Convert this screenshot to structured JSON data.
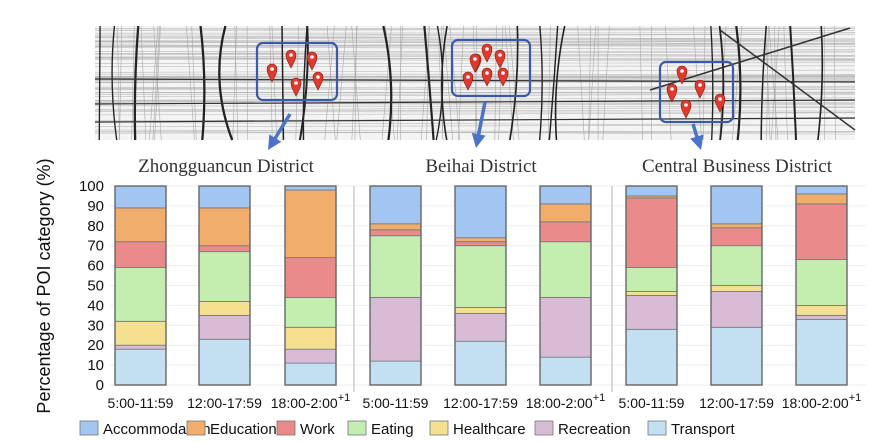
{
  "chart_data": {
    "type": "bar",
    "stacked": true,
    "ylabel": "Percentage of POI category (%)",
    "ylim": [
      0,
      100
    ],
    "yticks": [
      0,
      10,
      20,
      30,
      40,
      50,
      60,
      70,
      80,
      90,
      100
    ],
    "grid": true,
    "legend_position": "bottom",
    "categories": [
      "5:00-11:59",
      "12:00-17:59",
      "18:00-2:00"
    ],
    "category_superscripts": [
      "",
      "",
      "+1"
    ],
    "series_names": [
      "Transport",
      "Recreation",
      "Healthcare",
      "Eating",
      "Work",
      "Education",
      "Accommodation"
    ],
    "legend_order": [
      "Accommodation",
      "Education",
      "Work",
      "Eating",
      "Healthcare",
      "Recreation",
      "Transport"
    ],
    "colors": {
      "Accommodation": "#a3c5f2",
      "Education": "#f0ad6b",
      "Work": "#ea8a8a",
      "Eating": "#c3eeb0",
      "Healthcare": "#f5e08f",
      "Recreation": "#d8bcd6",
      "Transport": "#c3dff2"
    },
    "panels": [
      {
        "title": "Zhongguancun District",
        "values": [
          [
            18,
            2,
            12,
            27,
            13,
            17,
            11
          ],
          [
            23,
            12,
            7,
            25,
            3,
            19,
            11
          ],
          [
            11,
            7,
            11,
            15,
            20,
            34,
            2
          ]
        ]
      },
      {
        "title": "Beihai District",
        "values": [
          [
            12,
            32,
            0,
            31,
            3,
            3,
            19
          ],
          [
            22,
            14,
            3,
            31,
            2,
            2,
            26
          ],
          [
            14,
            30,
            0,
            28,
            10,
            9,
            9
          ]
        ]
      },
      {
        "title": "Central Business District",
        "values": [
          [
            28,
            17,
            2,
            12,
            35,
            1,
            5
          ],
          [
            29,
            18,
            3,
            20,
            9,
            2,
            19
          ],
          [
            33,
            2,
            5,
            23,
            28,
            5,
            4
          ]
        ]
      }
    ]
  },
  "map": {
    "icon": "map-pin-icon",
    "pin_color": "#e03a2e",
    "box_color": "#3a5aa8",
    "arrow_color": "#4a74c8",
    "pin_counts": [
      5,
      7,
      5
    ]
  }
}
